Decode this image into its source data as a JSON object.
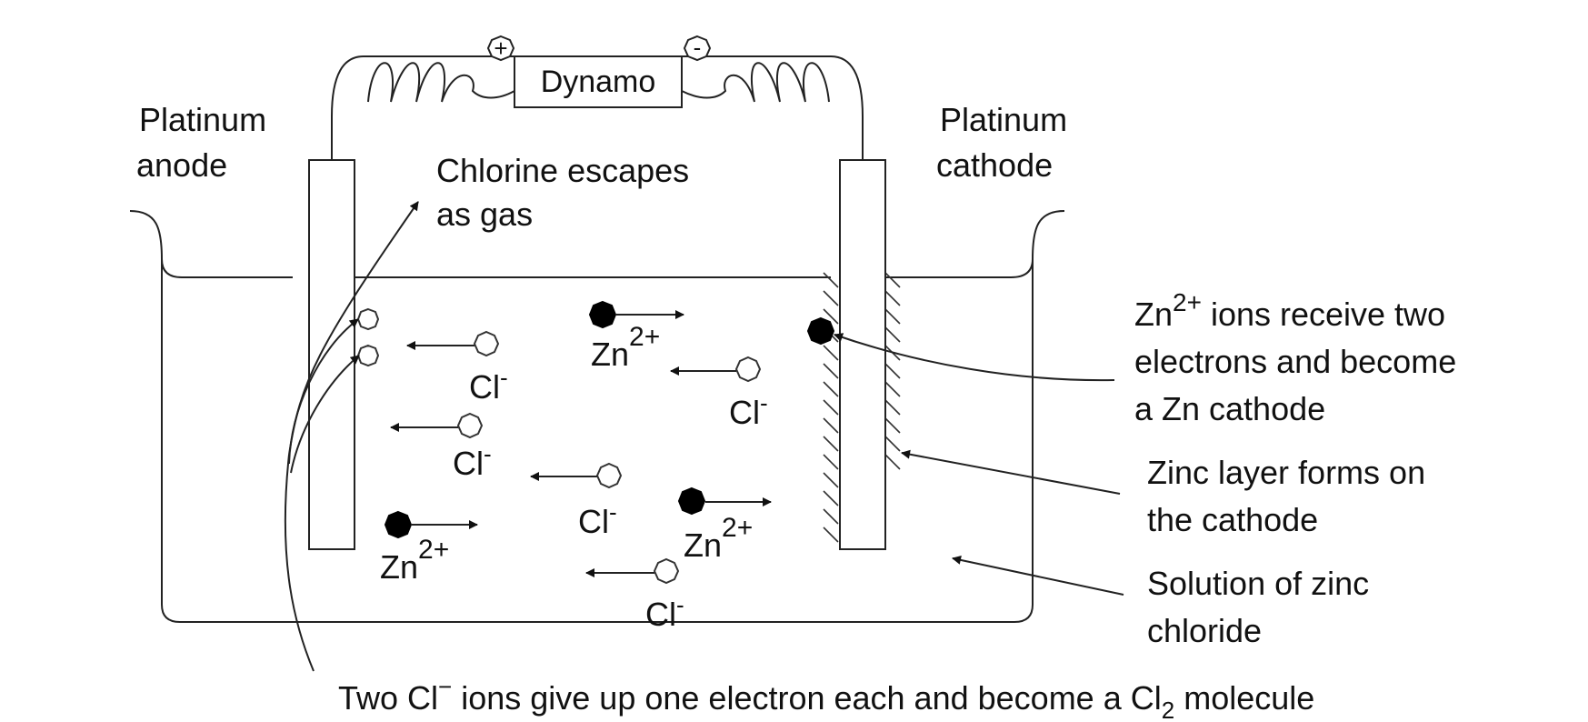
{
  "dynamo": {
    "label": "Dynamo",
    "plus": "+",
    "minus": "-"
  },
  "anode": {
    "line1": "Platinum",
    "line2": "anode"
  },
  "cathode": {
    "line1": "Platinum",
    "line2": "cathode"
  },
  "chlorine_note": {
    "line1": "Chlorine escapes",
    "line2": "as gas"
  },
  "ions": {
    "cl_base": "Cl",
    "cl_sup": "-",
    "zn_base": "Zn",
    "zn_sup": "2+"
  },
  "zn_receive": {
    "pre": "Zn",
    "sup": "2+",
    "line1_rest": " ions receive two",
    "line2": "electrons and become",
    "line3": "a Zn cathode"
  },
  "zinc_layer": {
    "line1": "Zinc layer forms on",
    "line2": "the cathode"
  },
  "solution": {
    "line1": "Solution of zinc",
    "line2": "chloride"
  },
  "bottom": {
    "part1": "Two Cl",
    "sup": "−",
    "part2": " ions give up one electron each and become a Cl",
    "sub": "2",
    "part3": " molecule"
  }
}
